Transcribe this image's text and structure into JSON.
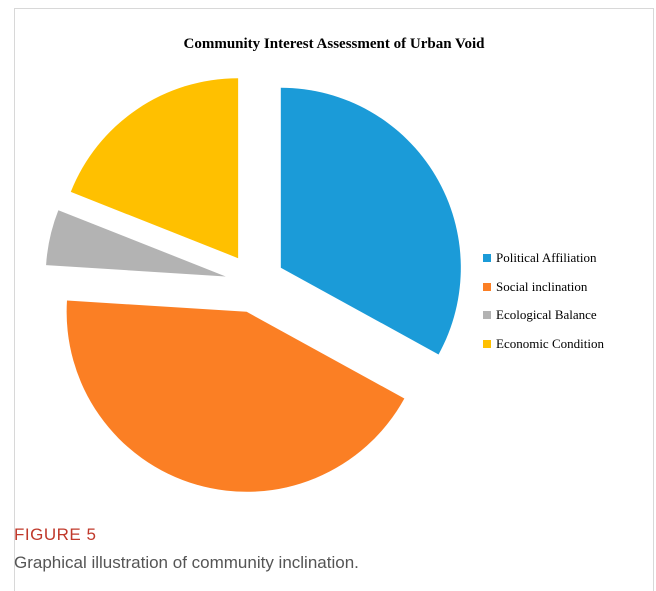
{
  "chart_data": {
    "type": "pie",
    "title": "Community Interest Assessment of Urban Void",
    "categories": [
      "Political Affiliation",
      "Social inclination",
      "Ecological Balance",
      "Economic Condition"
    ],
    "values": [
      33,
      43,
      5,
      19
    ],
    "colors": [
      "#1b9bd8",
      "#fb7f24",
      "#b3b3b3",
      "#ffc000"
    ],
    "exploded": true,
    "legend_position": "right"
  },
  "caption": {
    "label": "FIGURE 5",
    "text": "Graphical illustration of community inclination."
  }
}
